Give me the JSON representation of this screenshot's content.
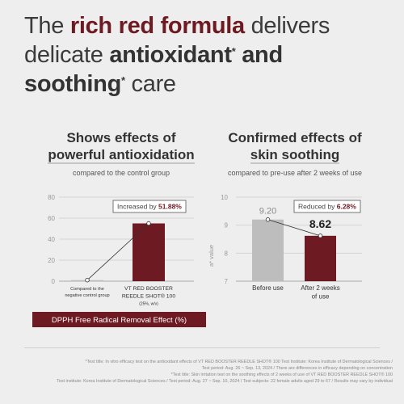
{
  "headline": {
    "part1": "The ",
    "red": "rich red formula",
    "part2": " delivers",
    "part3": "delicate ",
    "bold1": "antioxidant",
    "sup1": "*",
    "part4": " and",
    "bold2": "soothing",
    "sup2": "*",
    "part5": " care"
  },
  "left_panel": {
    "title_line1": "Shows effects of",
    "title_line2": "powerful antioxidation",
    "subtitle": "compared to the control group",
    "label_line1_prefix": "DPPH Free Radical Removal Effect (%)"
  },
  "right_panel": {
    "title_line1": "Confirmed effects of",
    "title_line2": "skin soothing",
    "subtitle": "compared to pre-use after 2 weeks of use"
  },
  "chart_data": [
    {
      "type": "bar",
      "categories": [
        "Compared to the negative control group",
        "VT RED BOOSTER REEDLE SHOT® 100 (25%, w/v)"
      ],
      "category_lines": [
        [
          "Compared to the",
          "negative control group"
        ],
        [
          "VT RED BOOSTER",
          "REEDLE SHOT® 100",
          "(25%, w/v)"
        ]
      ],
      "values": [
        1,
        55
      ],
      "ylim": [
        0,
        80
      ],
      "yticks": [
        "0",
        "20",
        "40",
        "60",
        "80"
      ],
      "colors": [
        "#bdbdbd",
        "#6e1a22"
      ],
      "annotation": {
        "text": "Increased by ",
        "value": "51.88%"
      },
      "xlabel": "DPPH Free Radical Removal Effect (%)",
      "grid": true
    },
    {
      "type": "bar",
      "categories": [
        "Before use",
        "After 2 weeks of use"
      ],
      "category_lines": [
        [
          "Before use"
        ],
        [
          "After 2 weeks",
          "of use"
        ]
      ],
      "values": [
        9.2,
        8.62
      ],
      "value_labels": [
        "9.20",
        "8.62"
      ],
      "ylim": [
        7,
        10
      ],
      "yticks": [
        "7",
        "8",
        "9",
        "10"
      ],
      "ylabel": "a* value",
      "colors": [
        "#bdbdbd",
        "#6e1a22"
      ],
      "annotation": {
        "text": "Reduced by ",
        "value": "6.28%"
      },
      "grid": true
    }
  ],
  "footnotes": [
    "*Test title: In vitro efficacy test on the antioxidant effects of VT RED BOOSTER REEDLE SHOT® 100 Test Institute: Korea Institute of Dermatological Sciences /",
    "Test period: Aug. 26 ~ Sep. 13, 2024 / There are differences in efficacy depending on concentration",
    "*Test title: Skin irritation test on the soothing effects of 2 weeks of use of VT RED BOOSTER REEDLE SHOT® 100",
    "Test institute: Korea Institute of Dermatological Sciences / Test period: Aug. 27 ~ Sep. 10, 2024 / Test subjects: 22 female adults aged 29 to 67 / Results may vary by individual"
  ],
  "colors": {
    "brand_red": "#6e1a22",
    "gray_bar": "#bdbdbd",
    "background": "#eeeeee"
  }
}
